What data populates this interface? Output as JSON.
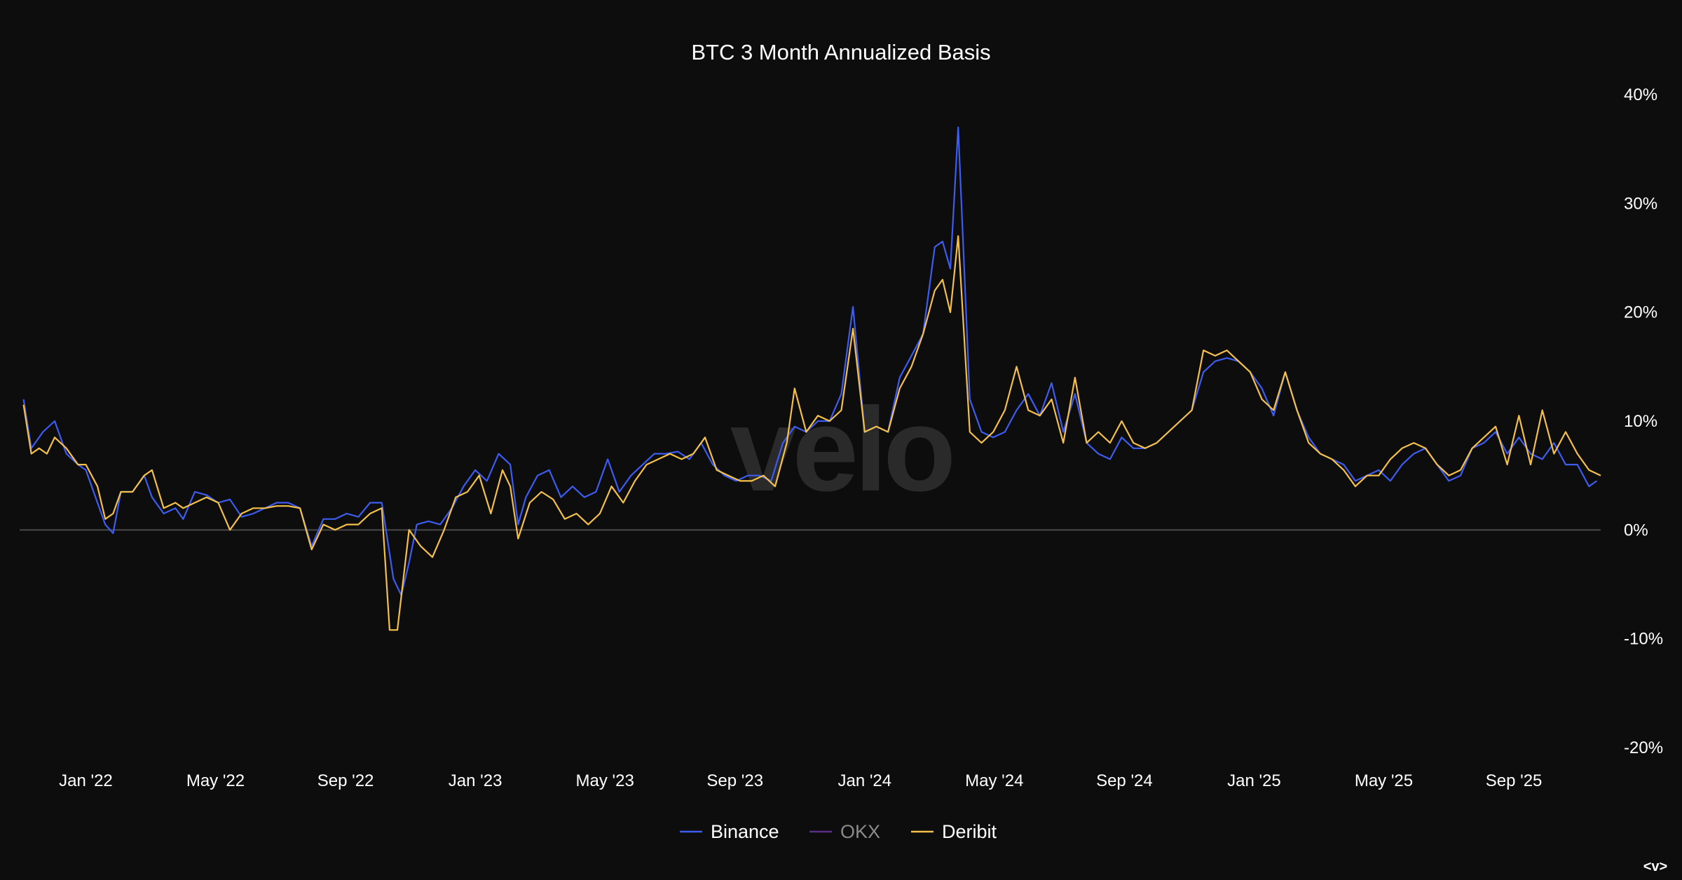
{
  "chart_data": {
    "type": "line",
    "title": "BTC 3 Month Annualized Basis",
    "watermark": "velo",
    "nav_label": "<v>",
    "xlabel": "",
    "ylabel": "",
    "x_range": [
      2021.83,
      2025.89
    ],
    "ylim": [
      -20,
      40
    ],
    "y_ticks": [
      40,
      30,
      20,
      10,
      0,
      -10,
      -20
    ],
    "y_tick_labels": [
      "40%",
      "30%",
      "20%",
      "10%",
      "0%",
      "-10%",
      "-20%"
    ],
    "x_ticks": [
      2022.0,
      2022.333,
      2022.667,
      2023.0,
      2023.333,
      2023.667,
      2024.0,
      2024.333,
      2024.667,
      2025.0,
      2025.333,
      2025.667
    ],
    "x_tick_labels": [
      "Jan '22",
      "May '22",
      "Sep '22",
      "Jan '23",
      "May '23",
      "Sep '23",
      "Jan '24",
      "May '24",
      "Sep '24",
      "Jan '25",
      "May '25",
      "Sep '25"
    ],
    "legend_position": "bottom-center",
    "zero_line": true,
    "series": [
      {
        "name": "Binance",
        "color": "#3d5cf0",
        "points": [
          [
            2021.84,
            12
          ],
          [
            2021.86,
            7.5
          ],
          [
            2021.89,
            9
          ],
          [
            2021.92,
            10
          ],
          [
            2021.95,
            7
          ],
          [
            2021.98,
            6
          ],
          [
            2022.0,
            5.5
          ],
          [
            2022.03,
            2.5
          ],
          [
            2022.05,
            0.5
          ],
          [
            2022.07,
            -0.3
          ],
          [
            2022.09,
            3.5
          ],
          [
            2022.12,
            3.5
          ],
          [
            2022.15,
            5
          ],
          [
            2022.17,
            3
          ],
          [
            2022.2,
            1.5
          ],
          [
            2022.23,
            2
          ],
          [
            2022.25,
            1
          ],
          [
            2022.28,
            3.5
          ],
          [
            2022.31,
            3.2
          ],
          [
            2022.34,
            2.5
          ],
          [
            2022.37,
            2.8
          ],
          [
            2022.4,
            1.2
          ],
          [
            2022.43,
            1.5
          ],
          [
            2022.46,
            2
          ],
          [
            2022.49,
            2.5
          ],
          [
            2022.52,
            2.5
          ],
          [
            2022.55,
            2
          ],
          [
            2022.58,
            -1.5
          ],
          [
            2022.61,
            1
          ],
          [
            2022.64,
            1
          ],
          [
            2022.67,
            1.5
          ],
          [
            2022.7,
            1.2
          ],
          [
            2022.73,
            2.5
          ],
          [
            2022.76,
            2.5
          ],
          [
            2022.79,
            -4.5
          ],
          [
            2022.81,
            -6
          ],
          [
            2022.83,
            -3
          ],
          [
            2022.85,
            0.5
          ],
          [
            2022.88,
            0.8
          ],
          [
            2022.91,
            0.5
          ],
          [
            2022.94,
            2
          ],
          [
            2022.97,
            4
          ],
          [
            2023.0,
            5.5
          ],
          [
            2023.03,
            4.5
          ],
          [
            2023.06,
            7
          ],
          [
            2023.09,
            6
          ],
          [
            2023.11,
            0.5
          ],
          [
            2023.13,
            3
          ],
          [
            2023.16,
            5
          ],
          [
            2023.19,
            5.5
          ],
          [
            2023.22,
            3
          ],
          [
            2023.25,
            4
          ],
          [
            2023.28,
            3
          ],
          [
            2023.31,
            3.5
          ],
          [
            2023.34,
            6.5
          ],
          [
            2023.37,
            3.5
          ],
          [
            2023.4,
            5
          ],
          [
            2023.43,
            6
          ],
          [
            2023.46,
            7
          ],
          [
            2023.49,
            7
          ],
          [
            2023.52,
            7.2
          ],
          [
            2023.55,
            6.5
          ],
          [
            2023.58,
            8
          ],
          [
            2023.61,
            6
          ],
          [
            2023.64,
            5
          ],
          [
            2023.67,
            4.5
          ],
          [
            2023.7,
            5
          ],
          [
            2023.73,
            5
          ],
          [
            2023.76,
            4.5
          ],
          [
            2023.79,
            8
          ],
          [
            2023.82,
            9.5
          ],
          [
            2023.85,
            9
          ],
          [
            2023.88,
            10
          ],
          [
            2023.91,
            10
          ],
          [
            2023.94,
            12.5
          ],
          [
            2023.97,
            20.5
          ],
          [
            2024.0,
            9
          ],
          [
            2024.03,
            9.5
          ],
          [
            2024.06,
            9
          ],
          [
            2024.09,
            14
          ],
          [
            2024.12,
            16
          ],
          [
            2024.15,
            18
          ],
          [
            2024.18,
            26
          ],
          [
            2024.2,
            26.5
          ],
          [
            2024.22,
            24
          ],
          [
            2024.24,
            37
          ],
          [
            2024.27,
            12
          ],
          [
            2024.3,
            9
          ],
          [
            2024.33,
            8.5
          ],
          [
            2024.36,
            9
          ],
          [
            2024.39,
            11
          ],
          [
            2024.42,
            12.5
          ],
          [
            2024.45,
            10.5
          ],
          [
            2024.48,
            13.5
          ],
          [
            2024.51,
            9
          ],
          [
            2024.54,
            12.5
          ],
          [
            2024.57,
            8
          ],
          [
            2024.6,
            7
          ],
          [
            2024.63,
            6.5
          ],
          [
            2024.66,
            8.5
          ],
          [
            2024.69,
            7.5
          ],
          [
            2024.72,
            7.5
          ],
          [
            2024.75,
            8
          ],
          [
            2024.78,
            9
          ],
          [
            2024.81,
            10
          ],
          [
            2024.84,
            11
          ],
          [
            2024.87,
            14.5
          ],
          [
            2024.9,
            15.5
          ],
          [
            2024.93,
            15.8
          ],
          [
            2024.96,
            15.5
          ],
          [
            2024.99,
            14.5
          ],
          [
            2025.02,
            13
          ],
          [
            2025.05,
            10.5
          ],
          [
            2025.08,
            14.5
          ],
          [
            2025.11,
            11
          ],
          [
            2025.14,
            8.5
          ],
          [
            2025.17,
            7
          ],
          [
            2025.2,
            6.5
          ],
          [
            2025.23,
            6
          ],
          [
            2025.26,
            4.5
          ],
          [
            2025.29,
            5
          ],
          [
            2025.32,
            5.5
          ],
          [
            2025.35,
            4.5
          ],
          [
            2025.38,
            6
          ],
          [
            2025.41,
            7
          ],
          [
            2025.44,
            7.5
          ],
          [
            2025.47,
            6
          ],
          [
            2025.5,
            4.5
          ],
          [
            2025.53,
            5
          ],
          [
            2025.56,
            7.5
          ],
          [
            2025.59,
            8
          ],
          [
            2025.62,
            9
          ],
          [
            2025.65,
            7
          ],
          [
            2025.68,
            8.5
          ],
          [
            2025.71,
            7
          ],
          [
            2025.74,
            6.5
          ],
          [
            2025.77,
            8
          ],
          [
            2025.8,
            6
          ],
          [
            2025.83,
            6
          ],
          [
            2025.86,
            4
          ],
          [
            2025.88,
            4.5
          ]
        ]
      },
      {
        "name": "OKX",
        "color": "#5b2f87",
        "points": []
      },
      {
        "name": "Deribit",
        "color": "#f5c04a",
        "points": [
          [
            2021.84,
            11.5
          ],
          [
            2021.86,
            7
          ],
          [
            2021.88,
            7.5
          ],
          [
            2021.9,
            7
          ],
          [
            2021.92,
            8.5
          ],
          [
            2021.95,
            7.5
          ],
          [
            2021.98,
            6
          ],
          [
            2022.0,
            6
          ],
          [
            2022.03,
            4
          ],
          [
            2022.05,
            1
          ],
          [
            2022.07,
            1.5
          ],
          [
            2022.09,
            3.5
          ],
          [
            2022.12,
            3.5
          ],
          [
            2022.15,
            5
          ],
          [
            2022.17,
            5.5
          ],
          [
            2022.2,
            2
          ],
          [
            2022.23,
            2.5
          ],
          [
            2022.25,
            2
          ],
          [
            2022.28,
            2.5
          ],
          [
            2022.31,
            3
          ],
          [
            2022.34,
            2.5
          ],
          [
            2022.37,
            0
          ],
          [
            2022.4,
            1.5
          ],
          [
            2022.43,
            2
          ],
          [
            2022.46,
            2
          ],
          [
            2022.49,
            2.2
          ],
          [
            2022.52,
            2.2
          ],
          [
            2022.55,
            2
          ],
          [
            2022.58,
            -1.8
          ],
          [
            2022.61,
            0.5
          ],
          [
            2022.64,
            0
          ],
          [
            2022.67,
            0.5
          ],
          [
            2022.7,
            0.5
          ],
          [
            2022.73,
            1.5
          ],
          [
            2022.76,
            2
          ],
          [
            2022.78,
            -9.2
          ],
          [
            2022.8,
            -9.2
          ],
          [
            2022.83,
            0
          ],
          [
            2022.86,
            -1.5
          ],
          [
            2022.89,
            -2.5
          ],
          [
            2022.92,
            0
          ],
          [
            2022.95,
            3
          ],
          [
            2022.98,
            3.5
          ],
          [
            2023.01,
            5
          ],
          [
            2023.04,
            1.5
          ],
          [
            2023.07,
            5.5
          ],
          [
            2023.09,
            4
          ],
          [
            2023.11,
            -0.8
          ],
          [
            2023.14,
            2.5
          ],
          [
            2023.17,
            3.5
          ],
          [
            2023.2,
            2.8
          ],
          [
            2023.23,
            1
          ],
          [
            2023.26,
            1.5
          ],
          [
            2023.29,
            0.5
          ],
          [
            2023.32,
            1.5
          ],
          [
            2023.35,
            4
          ],
          [
            2023.38,
            2.5
          ],
          [
            2023.41,
            4.5
          ],
          [
            2023.44,
            6
          ],
          [
            2023.47,
            6.5
          ],
          [
            2023.5,
            7
          ],
          [
            2023.53,
            6.5
          ],
          [
            2023.56,
            7
          ],
          [
            2023.59,
            8.5
          ],
          [
            2023.62,
            5.5
          ],
          [
            2023.65,
            5
          ],
          [
            2023.68,
            4.5
          ],
          [
            2023.71,
            4.5
          ],
          [
            2023.74,
            5
          ],
          [
            2023.77,
            4
          ],
          [
            2023.8,
            8
          ],
          [
            2023.82,
            13
          ],
          [
            2023.85,
            9
          ],
          [
            2023.88,
            10.5
          ],
          [
            2023.91,
            10
          ],
          [
            2023.94,
            11
          ],
          [
            2023.97,
            18.5
          ],
          [
            2024.0,
            9
          ],
          [
            2024.03,
            9.5
          ],
          [
            2024.06,
            9
          ],
          [
            2024.09,
            13
          ],
          [
            2024.12,
            15
          ],
          [
            2024.15,
            18
          ],
          [
            2024.18,
            22
          ],
          [
            2024.2,
            23
          ],
          [
            2024.22,
            20
          ],
          [
            2024.24,
            27
          ],
          [
            2024.27,
            9
          ],
          [
            2024.3,
            8
          ],
          [
            2024.33,
            9
          ],
          [
            2024.36,
            11
          ],
          [
            2024.39,
            15
          ],
          [
            2024.42,
            11
          ],
          [
            2024.45,
            10.5
          ],
          [
            2024.48,
            12
          ],
          [
            2024.51,
            8
          ],
          [
            2024.54,
            14
          ],
          [
            2024.57,
            8
          ],
          [
            2024.6,
            9
          ],
          [
            2024.63,
            8
          ],
          [
            2024.66,
            10
          ],
          [
            2024.69,
            8
          ],
          [
            2024.72,
            7.5
          ],
          [
            2024.75,
            8
          ],
          [
            2024.78,
            9
          ],
          [
            2024.81,
            10
          ],
          [
            2024.84,
            11
          ],
          [
            2024.87,
            16.5
          ],
          [
            2024.9,
            16
          ],
          [
            2024.93,
            16.5
          ],
          [
            2024.96,
            15.5
          ],
          [
            2024.99,
            14.5
          ],
          [
            2025.02,
            12
          ],
          [
            2025.05,
            11
          ],
          [
            2025.08,
            14.5
          ],
          [
            2025.11,
            11
          ],
          [
            2025.14,
            8
          ],
          [
            2025.17,
            7
          ],
          [
            2025.2,
            6.5
          ],
          [
            2025.23,
            5.5
          ],
          [
            2025.26,
            4
          ],
          [
            2025.29,
            5
          ],
          [
            2025.32,
            5
          ],
          [
            2025.35,
            6.5
          ],
          [
            2025.38,
            7.5
          ],
          [
            2025.41,
            8
          ],
          [
            2025.44,
            7.5
          ],
          [
            2025.47,
            6
          ],
          [
            2025.5,
            5
          ],
          [
            2025.53,
            5.5
          ],
          [
            2025.56,
            7.5
          ],
          [
            2025.59,
            8.5
          ],
          [
            2025.62,
            9.5
          ],
          [
            2025.65,
            6
          ],
          [
            2025.68,
            10.5
          ],
          [
            2025.71,
            6
          ],
          [
            2025.74,
            11
          ],
          [
            2025.77,
            7
          ],
          [
            2025.8,
            9
          ],
          [
            2025.83,
            7
          ],
          [
            2025.86,
            5.5
          ],
          [
            2025.89,
            5
          ]
        ]
      }
    ]
  }
}
